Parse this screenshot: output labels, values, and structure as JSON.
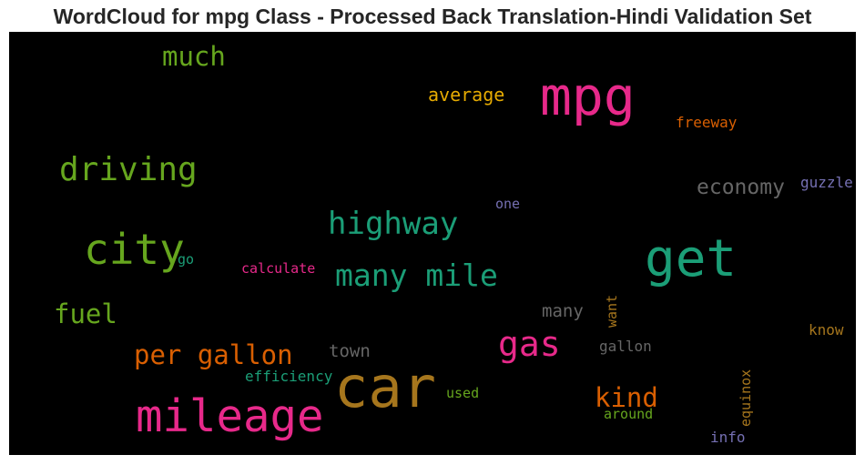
{
  "title": "WordCloud for mpg Class - Processed Back Translation-Hindi Validation Set",
  "colors": {
    "background": "#000000",
    "pink": "#e7298a",
    "green": "#1b9e77",
    "lime": "#66a61e",
    "gold": "#a6761d",
    "orange": "#d95f02",
    "yellow": "#e6ab02",
    "grey": "#666666",
    "purple": "#7570b3"
  },
  "words": {
    "car": "car",
    "mpg": "mpg",
    "mileage": "mileage",
    "get": "get",
    "city": "city",
    "driving": "driving",
    "highway": "highway",
    "many_mile": "many mile",
    "gas": "gas",
    "per_gallon": "per gallon",
    "much": "much",
    "fuel": "fuel",
    "kind": "kind",
    "economy": "economy",
    "average": "average",
    "freeway": "freeway",
    "guzzle": "guzzle",
    "one": "one",
    "go": "go",
    "calculate": "calculate",
    "many": "many",
    "town": "town",
    "want": "want",
    "gallon": "gallon",
    "know": "know",
    "efficiency": "efficiency",
    "used": "used",
    "around": "around",
    "equinox": "equinox",
    "info": "info"
  }
}
